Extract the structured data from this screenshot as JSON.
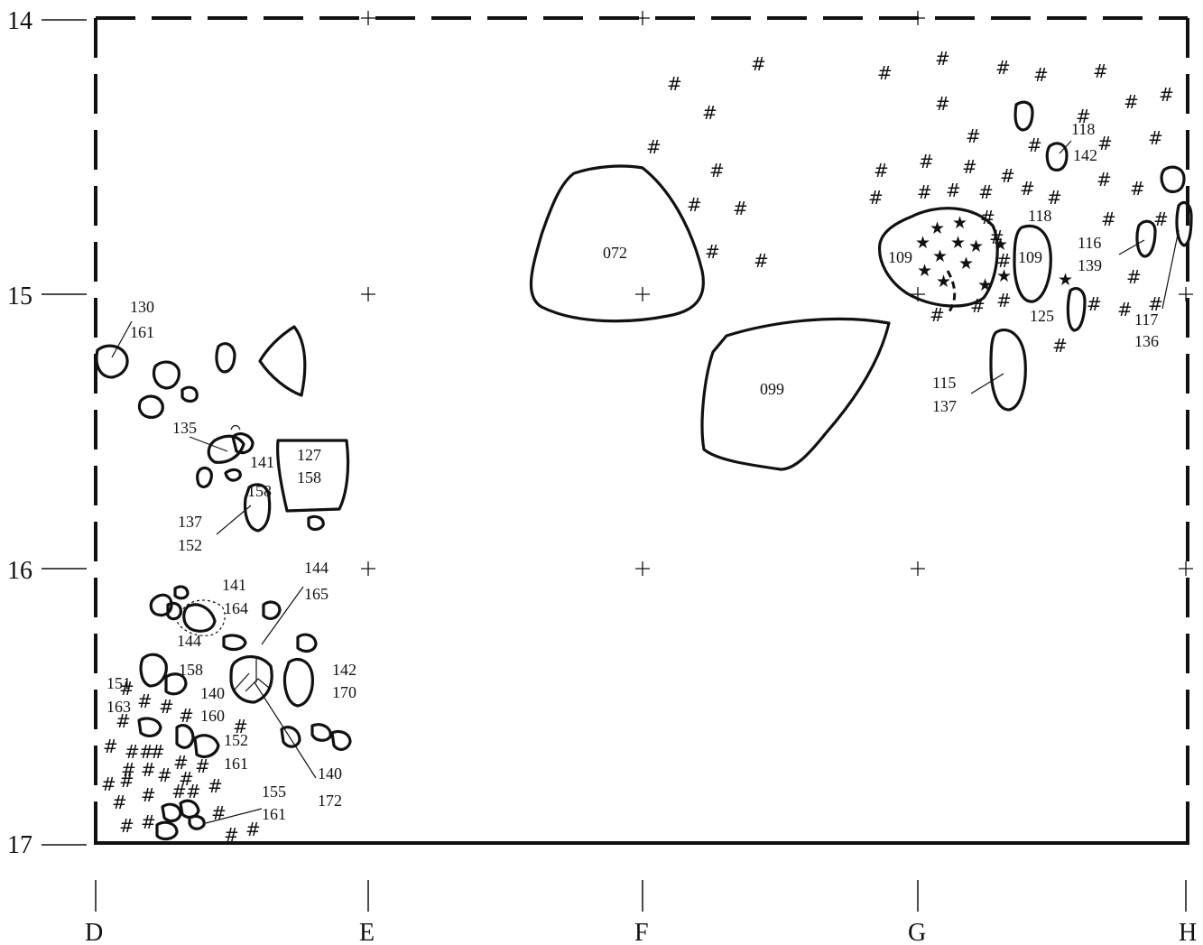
{
  "grid": {
    "rows": [
      "14",
      "15",
      "16",
      "17"
    ],
    "cols": [
      "D",
      "E",
      "F",
      "G",
      "H"
    ]
  },
  "features": {
    "f072": "072",
    "f099": "099",
    "f109a": "109",
    "f109b": "109",
    "f115": [
      "115",
      "137"
    ],
    "f116": [
      "116",
      "139"
    ],
    "f117": [
      "117",
      "136"
    ],
    "f118a": "118",
    "f118b": [
      "118",
      "142"
    ],
    "f125": "125",
    "f127": [
      "127",
      "158"
    ],
    "f130": [
      "130",
      "161"
    ],
    "f135": "135",
    "f141a": "141",
    "f158a": "158",
    "f137": [
      "137",
      "152"
    ],
    "f141b": [
      "141",
      "164"
    ],
    "f144a": [
      "144",
      "165"
    ],
    "f144b": [
      "144",
      "158"
    ],
    "f142": [
      "142",
      "170"
    ],
    "f151": [
      "151",
      "163"
    ],
    "f140a": [
      "140",
      "160"
    ],
    "f152": [
      "152",
      "161"
    ],
    "f140b": [
      "140",
      "172"
    ],
    "f155": [
      "155",
      "161"
    ]
  },
  "symbols": {
    "hash": "#",
    "star": "★"
  },
  "legend_meaning": {}
}
